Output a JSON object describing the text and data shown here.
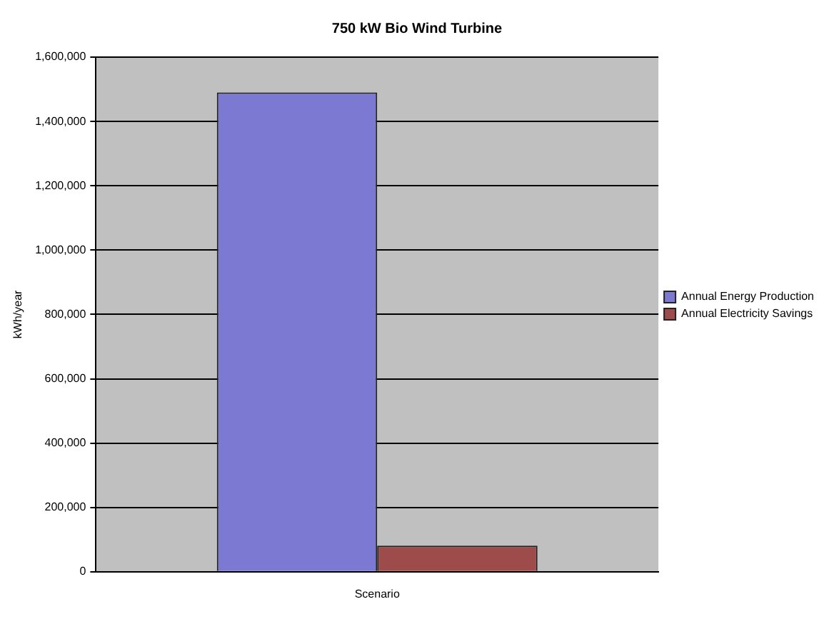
{
  "chart_data": {
    "type": "bar",
    "title": "750 kW Bio Wind Turbine",
    "ylabel": "kWh/year",
    "categories": [
      "Scenario"
    ],
    "series": [
      {
        "name": "Annual Energy Production",
        "color": "#7b79d2",
        "values": [
          1490000
        ]
      },
      {
        "name": "Annual Electricity Savings",
        "color": "#9e4b4b",
        "values": [
          81000
        ]
      }
    ],
    "ylim": [
      0,
      1600000
    ],
    "yticks": [
      0,
      {
        "value": 200000,
        "label": "200,000"
      },
      {
        "value": 400000,
        "label": "400,000"
      },
      {
        "value": 600000,
        "label": "600,000"
      },
      {
        "value": 800000,
        "label": "800,000"
      },
      {
        "value": 1000000,
        "label": "1,000,000"
      },
      {
        "value": 1200000,
        "label": "1,200,000"
      },
      {
        "value": 1400000,
        "label": "1,400,000"
      },
      {
        "value": 1600000,
        "label": "1,600,000"
      }
    ],
    "grid": "y",
    "legend": "right"
  }
}
